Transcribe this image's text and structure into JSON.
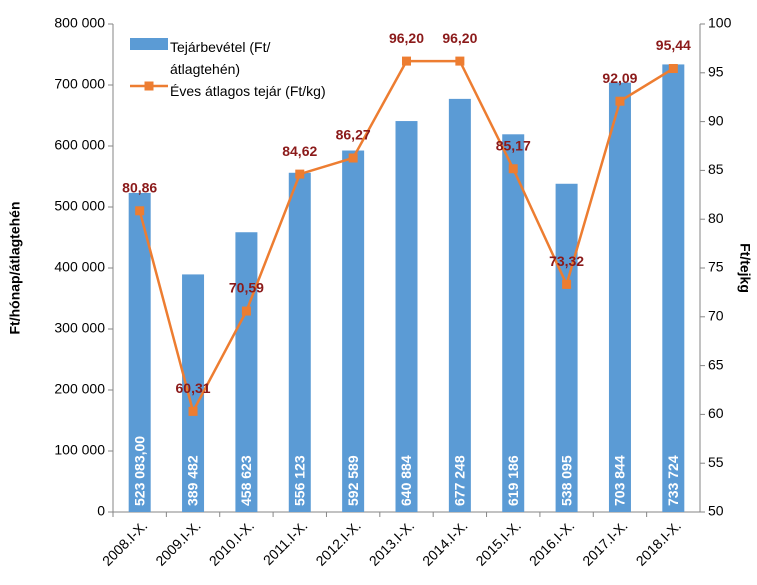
{
  "chart_data": {
    "type": "bar",
    "categories": [
      "2008.I-X.",
      "2009.I-X.",
      "2010.I-X.",
      "2011.I-X.",
      "2012.I-X.",
      "2013.I-X.",
      "2014.I-X.",
      "2015.I-X.",
      "2016.I-X.",
      "2017.I-X.",
      "2018.I-X."
    ],
    "series": [
      {
        "name": "Tejárbevétel (Ft/átlagtehén)",
        "type": "bar",
        "color": "#5b9bd5",
        "values": [
          523083,
          389482,
          458623,
          556123,
          592589,
          640884,
          677248,
          619186,
          538095,
          703844,
          733724
        ],
        "value_labels": [
          "523 083,00",
          "389 482",
          "458 623",
          "556 123",
          "592 589",
          "640 884",
          "677 248",
          "619 186",
          "538 095",
          "703 844",
          "733 724"
        ]
      },
      {
        "name": "Éves átlagos tejár (Ft/kg)",
        "type": "line",
        "axis": "y2",
        "color": "#ed7d31",
        "values": [
          80.86,
          60.31,
          70.59,
          84.62,
          86.27,
          96.2,
          96.2,
          85.17,
          73.32,
          92.09,
          95.44
        ],
        "value_labels": [
          "80,86",
          "60,31",
          "70,59",
          "84,62",
          "86,27",
          "96,20",
          "96,20",
          "85,17",
          "73,32",
          "92,09",
          "95,44"
        ]
      }
    ],
    "ylabel": "Ft/hónap/átlagtehén",
    "y2label": "Ft/tejkg",
    "ylim": [
      0,
      800000
    ],
    "yticks": [
      0,
      {
        "value": 100000,
        "label": "100 000"
      },
      {
        "value": 200000,
        "label": "200 000"
      },
      {
        "value": 300000,
        "label": "300 000"
      },
      {
        "value": 400000,
        "label": "400 000"
      },
      {
        "value": 500000,
        "label": "500 000"
      },
      {
        "value": 600000,
        "label": "600 000"
      },
      {
        "value": 700000,
        "label": "700 000"
      },
      {
        "value": 800000,
        "label": "800 000"
      }
    ],
    "y2lim": [
      50,
      100
    ],
    "y2ticks": [
      50,
      55,
      60,
      65,
      70,
      75,
      80,
      85,
      90,
      95,
      100
    ],
    "grid": false,
    "legend": "top-left"
  }
}
